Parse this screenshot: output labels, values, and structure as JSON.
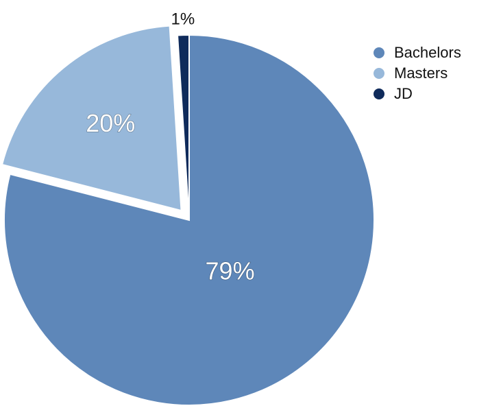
{
  "chart_data": {
    "type": "pie",
    "categories": [
      "Bachelors",
      "Masters",
      "JD"
    ],
    "values": [
      79,
      20,
      1
    ],
    "labels": [
      "79%",
      "20%",
      "1%"
    ],
    "colors": [
      "#5e87b9",
      "#97b8da",
      "#0f2b5b"
    ],
    "exploded": [
      false,
      true,
      false
    ],
    "legend_position": "top-right",
    "start_angle": "top, clockwise"
  }
}
